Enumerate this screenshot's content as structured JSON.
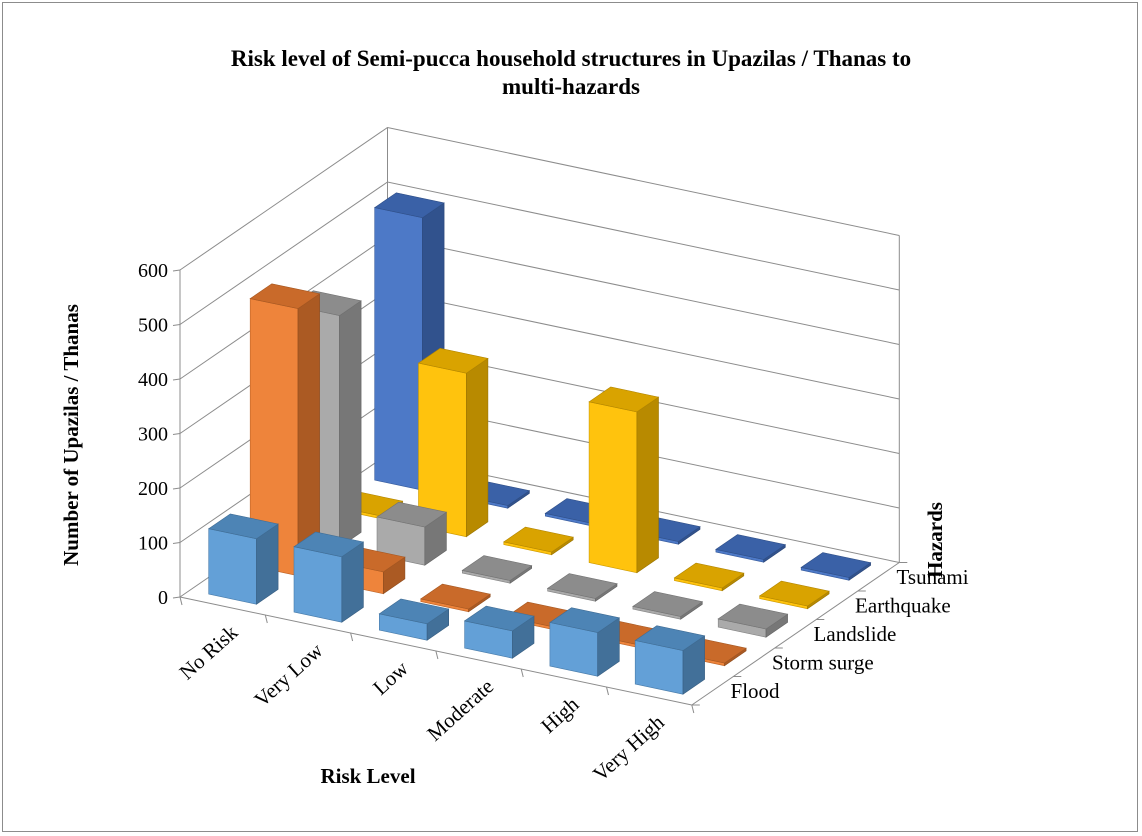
{
  "chart_data": {
    "type": "bar",
    "subtype": "3d-column",
    "title": "Risk level of Semi-pucca household structures in Upazilas / Thanas to multi-hazards",
    "xlabel": "Risk Level",
    "ylabel": "Number of Upazilas / Thanas",
    "zlabel": "Hazards",
    "categories": [
      "No Risk",
      "Very Low",
      "Low",
      "Moderate",
      "High",
      "Very High"
    ],
    "ylim": [
      0,
      600
    ],
    "yticks": [
      0,
      100,
      200,
      300,
      400,
      500,
      600
    ],
    "grid": true,
    "series": [
      {
        "name": "Flood",
        "color": "#5b9bd5",
        "values": [
          120,
          120,
          30,
          50,
          80,
          80
        ]
      },
      {
        "name": "Storm surge",
        "color": "#ed7d31",
        "values": [
          490,
          40,
          5,
          5,
          5,
          5
        ]
      },
      {
        "name": "Landslide",
        "color": "#a5a5a5",
        "values": [
          425,
          70,
          5,
          5,
          5,
          15
        ]
      },
      {
        "name": "Earthquake",
        "color": "#ffc000",
        "values": [
          5,
          300,
          5,
          295,
          5,
          5
        ]
      },
      {
        "name": "Tsunami",
        "color": "#4472c4",
        "values": [
          500,
          5,
          5,
          5,
          5,
          5
        ]
      }
    ]
  }
}
